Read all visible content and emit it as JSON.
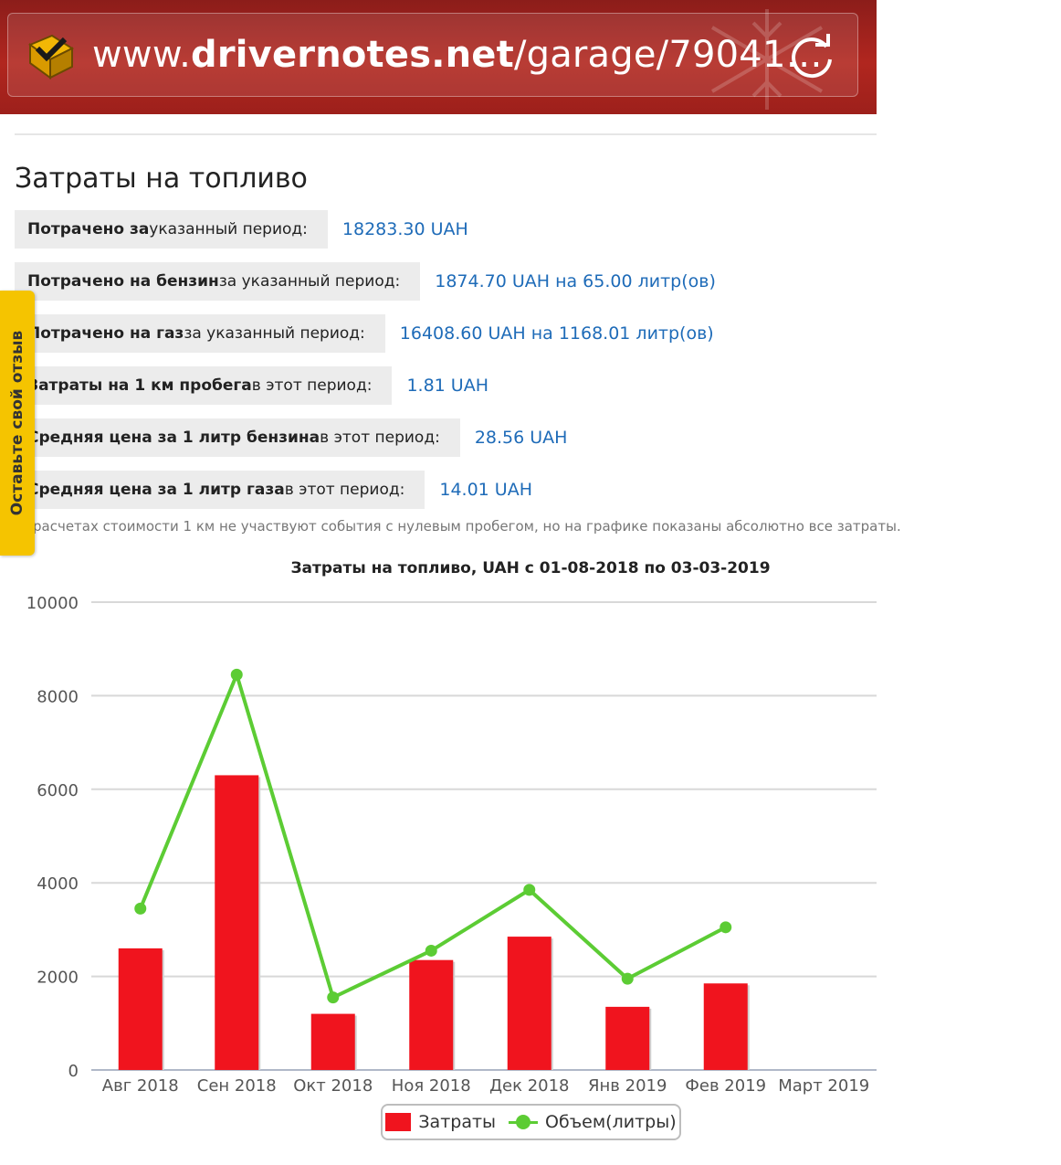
{
  "browser": {
    "url_prefix": "www.",
    "url_domain": "drivernotes.net",
    "url_path": "/garage/79041…"
  },
  "feedback_tab": {
    "label": "Оставьте свой отзыв"
  },
  "page": {
    "title": "Затраты на топливо",
    "stats": [
      {
        "label_bold": "Потрачено за",
        "label_rest": " указанный период:",
        "value": "18283.30 UAH"
      },
      {
        "label_bold": "Потрачено на бензин",
        "label_rest": " за указанный период:",
        "value": "1874.70 UAH на 65.00 литр(ов)"
      },
      {
        "label_bold": "Потрачено на газ",
        "label_rest": " за указанный период:",
        "value": "16408.60 UAH на 1168.01 литр(ов)"
      },
      {
        "label_bold": "Затраты на 1 км пробега",
        "label_rest": " в этот период:",
        "value": "1.81 UAH"
      },
      {
        "label_bold": "Средняя цена за 1 литр бензина",
        "label_rest": " в этот период:",
        "value": "28.56 UAH"
      },
      {
        "label_bold": "Средняя цена за 1 литр газа",
        "label_rest": " в этот период:",
        "value": "14.01 UAH"
      }
    ],
    "note": "расчетах стоимости 1 км не участвуют события с нулевым пробегом, но на графике показаны абсолютно все затраты."
  },
  "chart_data": {
    "type": "bar",
    "title": "Затраты на топливо, UAH с 01-08-2018 по 03-03-2019",
    "categories": [
      "Авг 2018",
      "Сен 2018",
      "Окт 2018",
      "Ноя 2018",
      "Дек 2018",
      "Янв 2019",
      "Фев 2019",
      "Март 2019"
    ],
    "ylim": [
      0,
      10000
    ],
    "yticks": [
      0,
      2000,
      4000,
      6000,
      8000,
      10000
    ],
    "grid": true,
    "legend_position": "bottom",
    "series": [
      {
        "name": "Затраты",
        "type": "bar",
        "color": "#f0141e",
        "values": [
          2600,
          6300,
          1200,
          2350,
          2850,
          1350,
          1850,
          null
        ]
      },
      {
        "name": "Объем(литры)",
        "type": "line",
        "color": "#5ccc34",
        "values": [
          3450,
          8450,
          1550,
          2550,
          3850,
          1950,
          3050,
          null
        ]
      }
    ]
  }
}
